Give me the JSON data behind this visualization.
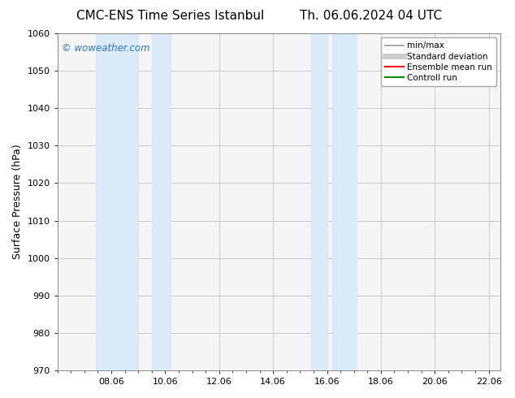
{
  "title_left": "CMC-ENS Time Series Istanbul",
  "title_right": "Th. 06.06.2024 04 UTC",
  "ylabel": "Surface Pressure (hPa)",
  "ylim": [
    970,
    1060
  ],
  "yticks": [
    970,
    980,
    990,
    1000,
    1010,
    1020,
    1030,
    1040,
    1050,
    1060
  ],
  "xlim_start": 6.06,
  "xlim_end": 22.5,
  "xticks": [
    8.06,
    10.06,
    12.06,
    14.06,
    16.06,
    18.06,
    20.06,
    22.06
  ],
  "xtick_labels": [
    "08.06",
    "10.06",
    "12.06",
    "14.06",
    "16.06",
    "18.06",
    "20.06",
    "22.06"
  ],
  "shaded_regions": [
    {
      "x_start": 7.5,
      "x_end": 9.06,
      "color": "#daeaf8"
    },
    {
      "x_start": 9.56,
      "x_end": 10.26,
      "color": "#daeaf8"
    },
    {
      "x_start": 15.46,
      "x_end": 16.06,
      "color": "#daeaf8"
    },
    {
      "x_start": 16.26,
      "x_end": 17.16,
      "color": "#daeaf8"
    }
  ],
  "watermark_text": "© woweather.com",
  "watermark_color": "#3377bb",
  "bg_color": "#ffffff",
  "plot_bg_color": "#f5f5f5",
  "grid_color": "#bbbbbb",
  "legend_items": [
    {
      "label": "min/max",
      "color": "#999999",
      "lw": 1.2
    },
    {
      "label": "Standard deviation",
      "color": "#cccccc",
      "lw": 5
    },
    {
      "label": "Ensemble mean run",
      "color": "#ff0000",
      "lw": 1.5
    },
    {
      "label": "Controll run",
      "color": "#008800",
      "lw": 1.5
    }
  ],
  "title_fontsize": 11,
  "tick_fontsize": 8,
  "ylabel_fontsize": 9,
  "legend_fontsize": 7.5
}
